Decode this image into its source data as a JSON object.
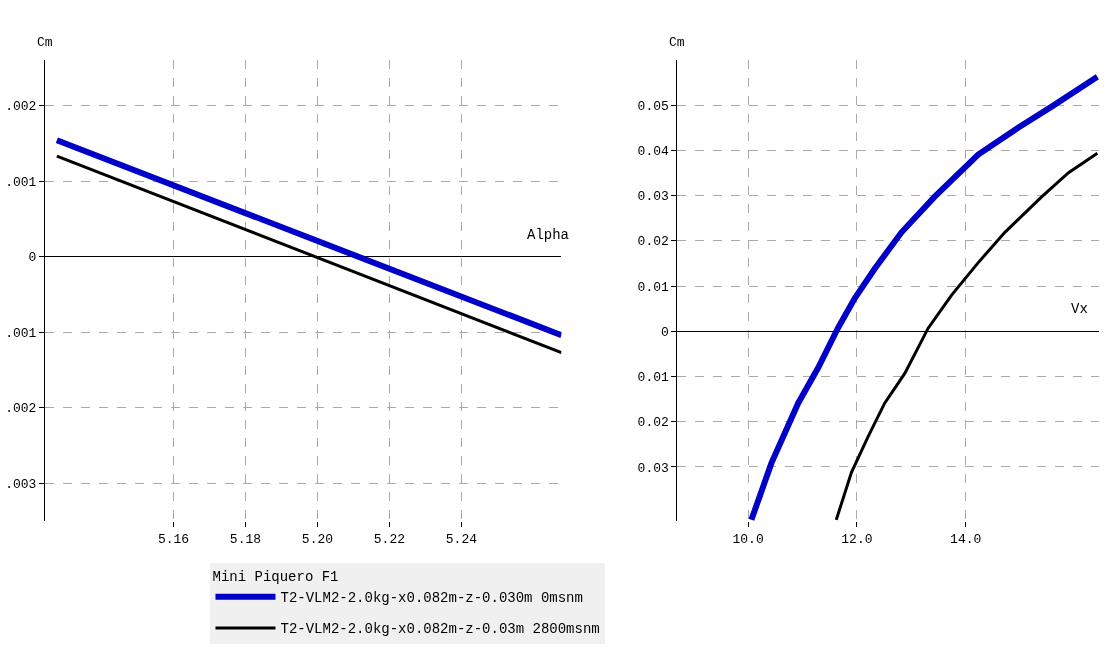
{
  "chart_data": [
    {
      "type": "line",
      "xlabel": "Alpha",
      "ylabel": "Cm",
      "legend_title": "Mini Piquero F1",
      "legend": "bottom",
      "grid": true,
      "line_style": "solid",
      "marker": "none",
      "xlim": [
        5.1243,
        5.2678
      ],
      "xticks": [
        5.16,
        5.18,
        {
          "value": 5.2,
          "label": "5.20"
        },
        5.22,
        5.24
      ],
      "ylim": [
        -0.0035,
        0.0026
      ],
      "yticks": [
        {
          "value": 0.002,
          "label": ".002"
        },
        {
          "value": 0.001,
          "label": ".001"
        },
        0,
        {
          "value": -0.001,
          "label": ".001"
        },
        {
          "value": -0.002,
          "label": ".002"
        },
        {
          "value": -0.003,
          "label": ".003"
        }
      ],
      "series": [
        {
          "name": "T2-VLM2-2.0kg-x0.082m-z-0.030m 0msnm",
          "color": "#0000c8",
          "x": [
            5.1276,
            5.2678
          ],
          "values": [
            0.00154,
            -0.00104
          ]
        },
        {
          "name": "T2-VLM2-2.0kg-x0.082m-z-0.03m 2800msnm",
          "color": "#000000",
          "x": [
            5.1276,
            5.2678
          ],
          "values": [
            0.00133,
            -0.00127
          ]
        }
      ]
    },
    {
      "type": "line",
      "xlabel": "Vx",
      "ylabel": "Cm",
      "grid": true,
      "line_style": "solid",
      "marker": "none",
      "xlim": [
        8.7,
        16.45
      ],
      "xticks": [
        {
          "value": 10,
          "label": "10.0"
        },
        {
          "value": 12,
          "label": "12.0"
        },
        {
          "value": 14,
          "label": "14.0"
        }
      ],
      "ylim": [
        -0.042,
        0.06
      ],
      "yticks": [
        0.05,
        0.04,
        0.03,
        0.02,
        0.01,
        0,
        {
          "value": -0.01,
          "label": "0.01"
        },
        {
          "value": -0.02,
          "label": "0.02"
        },
        {
          "value": -0.03,
          "label": "0.03"
        }
      ],
      "series": [
        {
          "color": "#0000c8",
          "x": [
            10.06,
            10.43,
            10.92,
            11.29,
            11.65,
            11.96,
            12.33,
            12.82,
            13.43,
            14.23,
            14.97,
            15.58,
            16.42
          ],
          "values": [
            -0.0417,
            -0.0291,
            -0.0159,
            -0.008,
            0.0007,
            0.0073,
            0.0139,
            0.0219,
            0.0298,
            0.0391,
            0.0451,
            0.0497,
            0.0563
          ]
        },
        {
          "color": "#000000",
          "x": [
            11.62,
            11.9,
            12.21,
            12.51,
            12.88,
            13.31,
            13.74,
            14.23,
            14.72,
            15.4,
            15.89,
            16.42
          ],
          "values": [
            -0.0417,
            -0.0312,
            -0.0232,
            -0.0159,
            -0.0093,
            0.0007,
            0.008,
            0.0152,
            0.0219,
            0.0298,
            0.0351,
            0.0394
          ]
        }
      ]
    }
  ]
}
